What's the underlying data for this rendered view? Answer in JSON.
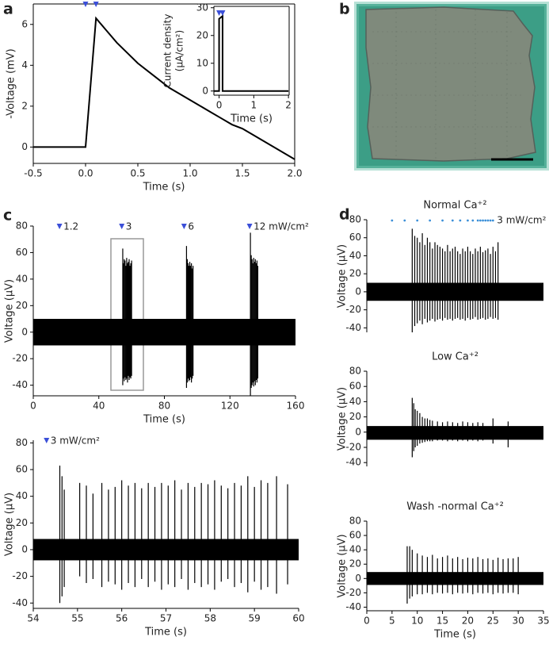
{
  "chart_data": [
    {
      "type": "line",
      "label": "a",
      "xlabel": "Time (s)",
      "ylabel": "-Voltage (mV)",
      "xlim": [
        -0.5,
        2.0
      ],
      "ylim": [
        -0.8,
        7
      ],
      "xticks": [
        -0.5,
        {
          "value": 0,
          "label": "0.0"
        },
        0.5,
        {
          "value": 1,
          "label": "1.0"
        },
        1.5,
        {
          "value": 2,
          "label": "2.0"
        }
      ],
      "yticks": [
        0,
        2,
        4,
        6
      ],
      "x": [
        -0.5,
        0,
        0.1,
        0.2,
        0.3,
        0.4,
        0.5,
        0.6,
        0.7,
        0.8,
        0.9,
        1.0,
        1.1,
        1.2,
        1.3,
        1.4,
        1.5,
        1.6,
        1.7,
        1.8,
        1.9,
        2.0
      ],
      "values": [
        0,
        0,
        6.3,
        5.7,
        5.1,
        4.6,
        4.1,
        3.7,
        3.3,
        2.9,
        2.6,
        2.3,
        2.0,
        1.7,
        1.4,
        1.1,
        0.9,
        0.6,
        0.3,
        0.0,
        -0.3,
        -0.6
      ],
      "color": "#000000",
      "stimuli": {
        "x": [
          0,
          0.1
        ],
        "marker": "triangle",
        "color": "#3b4fd8"
      }
    },
    {
      "type": "line",
      "xlabel": "Time (s)",
      "ylabel": [
        "Current density",
        "(μA/cm²)"
      ],
      "xlim": [
        -0.15,
        2.02
      ],
      "ylim": [
        -1.5,
        30.5
      ],
      "xticks": [
        0,
        1,
        2
      ],
      "yticks": [
        0,
        10,
        20,
        30
      ],
      "x": [
        -0.15,
        0,
        0,
        0.1,
        0.1,
        2.0
      ],
      "values": [
        0,
        0,
        26,
        27,
        0,
        0
      ],
      "color": "#000000",
      "stimuli": {
        "x": [
          0,
          0.1
        ],
        "marker": "triangle",
        "color": "#3b4fd8"
      }
    },
    {
      "type": "image",
      "label": "b"
    },
    {
      "type": "trace",
      "label": "c",
      "xlabel": "Time (s)",
      "ylabel": "Voltage (μV)",
      "xlim": [
        0,
        160
      ],
      "ylim": [
        -48,
        80
      ],
      "xticks": [
        0,
        40,
        80,
        120,
        160
      ],
      "yticks": [
        -40,
        -20,
        0,
        20,
        40,
        60,
        80
      ],
      "noise": [
        -10,
        10
      ],
      "color": "#000000",
      "spikes": {
        "x": [
          54.6,
          55,
          55.5,
          56,
          56.5,
          57,
          57.5,
          58,
          58.5,
          59,
          59.5,
          60,
          93.5,
          94,
          94.5,
          95,
          95.5,
          96,
          96.5,
          97,
          97.5,
          132.5,
          133,
          133.5,
          134,
          134.5,
          135,
          135.5,
          136,
          136.5,
          137
        ],
        "peak": [
          63,
          52,
          55,
          54,
          50,
          56,
          52,
          53,
          55,
          50,
          52,
          54,
          65,
          55,
          52,
          50,
          53,
          50,
          52,
          48,
          50,
          75,
          58,
          55,
          52,
          56,
          53,
          55,
          52,
          54,
          50
        ],
        "trough": [
          -40,
          -35,
          -37,
          -34,
          -36,
          -35,
          -38,
          -33,
          -36,
          -34,
          -35,
          -33,
          -42,
          -38,
          -35,
          -37,
          -36,
          -34,
          -38,
          -35,
          -33,
          -48,
          -42,
          -40,
          -38,
          -41,
          -37,
          -40,
          -36,
          -38,
          -35
        ]
      },
      "stimuli": {
        "x": [
          16,
          54,
          92,
          132
        ],
        "labels": [
          "1.2",
          "3",
          "6",
          "12 mW/cm²"
        ],
        "marker": "triangle",
        "color": "#3b4fd8"
      }
    },
    {
      "type": "trace",
      "xlabel": "Time (s)",
      "ylabel": "Voltage (μV)",
      "xlim": [
        54,
        60
      ],
      "ylim": [
        -44,
        82
      ],
      "xticks": [
        54,
        55,
        56,
        57,
        58,
        59,
        60
      ],
      "yticks": [
        -40,
        -20,
        0,
        20,
        40,
        60,
        80
      ],
      "noise": [
        -8,
        8
      ],
      "color": "#000000",
      "spikes": {
        "x": [
          54.6,
          54.65,
          54.7,
          55.05,
          55.2,
          55.35,
          55.55,
          55.7,
          55.85,
          56.0,
          56.15,
          56.3,
          56.45,
          56.6,
          56.75,
          56.9,
          57.05,
          57.2,
          57.35,
          57.5,
          57.65,
          57.8,
          57.95,
          58.1,
          58.25,
          58.4,
          58.55,
          58.7,
          58.85,
          59.0,
          59.15,
          59.3,
          59.5,
          59.75
        ],
        "peak": [
          63,
          55,
          45,
          50,
          48,
          42,
          50,
          45,
          47,
          52,
          48,
          50,
          46,
          50,
          47,
          50,
          48,
          52,
          45,
          50,
          47,
          50,
          49,
          52,
          48,
          46,
          50,
          48,
          55,
          47,
          52,
          50,
          55,
          49
        ],
        "trough": [
          -40,
          -35,
          -28,
          -20,
          -25,
          -22,
          -28,
          -24,
          -26,
          -30,
          -25,
          -28,
          -22,
          -28,
          -24,
          -30,
          -26,
          -28,
          -22,
          -30,
          -25,
          -28,
          -26,
          -30,
          -24,
          -22,
          -28,
          -25,
          -32,
          -24,
          -30,
          -28,
          -33,
          -26
        ]
      },
      "stimuli": {
        "x": [
          54.3
        ],
        "labels": [
          "3 mW/cm²"
        ],
        "marker": "triangle",
        "color": "#3b4fd8"
      }
    },
    {
      "type": "trace",
      "label": "d",
      "title": "Normal Ca⁺²",
      "ylabel": "Voltage (μV)",
      "xlim": [
        0,
        35
      ],
      "ylim": [
        -45,
        80
      ],
      "yticks": [
        -40,
        -20,
        0,
        20,
        40,
        60,
        80
      ],
      "noise": [
        -10,
        10
      ],
      "color": "#000000",
      "spikes": {
        "x": [
          9,
          9.5,
          10,
          10.5,
          11,
          11.5,
          12,
          12.5,
          13,
          13.5,
          14,
          14.5,
          15,
          15.5,
          16,
          16.5,
          17,
          17.5,
          18,
          18.5,
          19,
          19.5,
          20,
          20.5,
          21,
          21.5,
          22,
          22.5,
          23,
          23.5,
          24,
          24.5,
          25,
          25.5,
          26
        ],
        "peak": [
          70,
          62,
          60,
          55,
          65,
          52,
          60,
          55,
          48,
          55,
          52,
          50,
          48,
          45,
          52,
          45,
          48,
          50,
          45,
          42,
          48,
          45,
          50,
          45,
          42,
          48,
          45,
          50,
          44,
          46,
          48,
          42,
          50,
          45,
          55
        ],
        "trough": [
          -45,
          -38,
          -35,
          -32,
          -36,
          -30,
          -34,
          -32,
          -30,
          -33,
          -31,
          -30,
          -32,
          -29,
          -31,
          -30,
          -32,
          -30,
          -29,
          -31,
          -30,
          -32,
          -29,
          -31,
          -30,
          -28,
          -31,
          -30,
          -29,
          -31,
          -30,
          -28,
          -30,
          -29,
          -31
        ]
      },
      "stimuli": {
        "x": [
          5,
          7.5,
          10,
          12.5,
          15,
          17,
          18.5,
          20,
          21,
          22,
          22.5,
          23,
          23.5,
          24,
          24.5,
          25
        ],
        "label": "3 mW/cm²",
        "marker": "dot",
        "color": "#3b8fd8"
      }
    },
    {
      "type": "trace",
      "title": "Low Ca⁺²",
      "ylabel": "Voltage (μV)",
      "xlim": [
        0,
        35
      ],
      "ylim": [
        -45,
        80
      ],
      "yticks": [
        -40,
        -20,
        0,
        20,
        40,
        60,
        80
      ],
      "noise": [
        -10,
        8
      ],
      "color": "#000000",
      "spikes": {
        "x": [
          9,
          9.3,
          9.6,
          10,
          10.5,
          11,
          11.5,
          12,
          12.5,
          13,
          14,
          15,
          16,
          17,
          18,
          19,
          20,
          21,
          22,
          23,
          25,
          28
        ],
        "peak": [
          45,
          38,
          30,
          28,
          25,
          20,
          18,
          18,
          16,
          15,
          14,
          13,
          14,
          13,
          12,
          14,
          13,
          12,
          13,
          12,
          18,
          14
        ],
        "trough": [
          -33,
          -25,
          -20,
          -18,
          -15,
          -14,
          -13,
          -12,
          -12,
          -12,
          -11,
          -11,
          -12,
          -11,
          -12,
          -11,
          -12,
          -11,
          -12,
          -11,
          -15,
          -20
        ]
      }
    },
    {
      "type": "trace",
      "title": "Wash -normal Ca⁺²",
      "xlabel": "Time (s)",
      "ylabel": "Voltage (μV)",
      "xlim": [
        0,
        35
      ],
      "ylim": [
        -45,
        80
      ],
      "xticks": [
        0,
        5,
        10,
        15,
        20,
        25,
        30,
        35
      ],
      "yticks": [
        -40,
        -20,
        0,
        20,
        40,
        60,
        80
      ],
      "noise": [
        -9,
        9
      ],
      "color": "#000000",
      "spikes": {
        "x": [
          8,
          8.5,
          9,
          10,
          11,
          12,
          13,
          14,
          15,
          16,
          17,
          18,
          19,
          20,
          21,
          22,
          23,
          24,
          25,
          26,
          27,
          28,
          29,
          30
        ],
        "peak": [
          45,
          45,
          40,
          35,
          32,
          30,
          33,
          28,
          30,
          32,
          28,
          30,
          27,
          29,
          28,
          30,
          27,
          28,
          26,
          29,
          27,
          28,
          28,
          30
        ],
        "trough": [
          -35,
          -28,
          -25,
          -22,
          -22,
          -20,
          -22,
          -20,
          -21,
          -20,
          -22,
          -20,
          -21,
          -20,
          -22,
          -20,
          -21,
          -20,
          -22,
          -20,
          -21,
          -20,
          -20,
          -22
        ]
      }
    }
  ]
}
